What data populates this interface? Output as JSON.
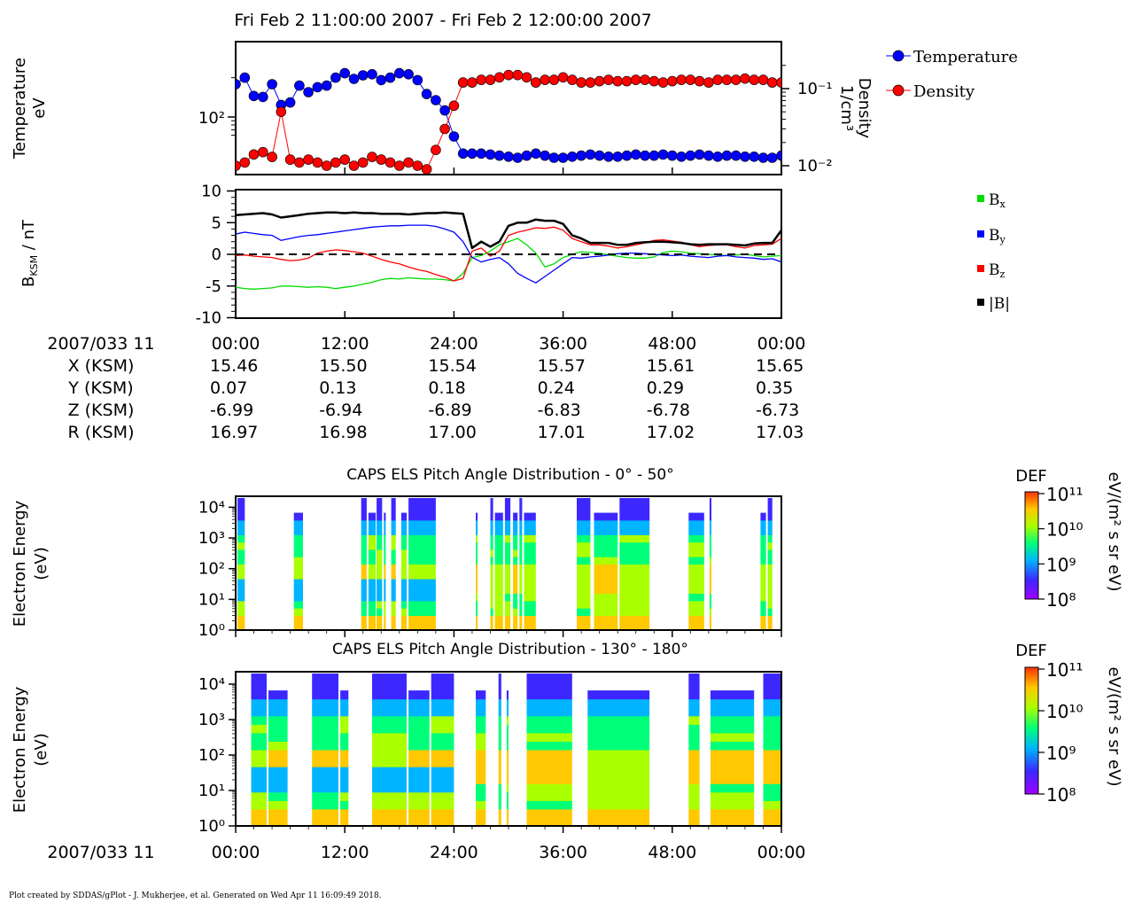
{
  "page_title": "Fri Feb 2 11:00:00 2007 - Fri Feb 2 12:00:00 2007",
  "footer": "Plot created by SDDAS/gPlot - J. Mukherjee, et al.  Generated on Wed Apr 11 16:09:49 2018.",
  "time_axis": {
    "row_label": "2007/033 11",
    "ticks": [
      "00:00",
      "12:00",
      "24:00",
      "36:00",
      "48:00",
      "00:00"
    ],
    "tick_minutes": [
      0,
      12,
      24,
      36,
      48,
      60
    ]
  },
  "ephemeris": [
    {
      "label": "X (KSM)",
      "values": [
        "15.46",
        "15.50",
        "15.54",
        "15.57",
        "15.61",
        "15.65"
      ]
    },
    {
      "label": "Y (KSM)",
      "values": [
        "0.07",
        "0.13",
        "0.18",
        "0.24",
        "0.29",
        "0.35"
      ]
    },
    {
      "label": "Z (KSM)",
      "values": [
        "-6.99",
        "-6.94",
        "-6.89",
        "-6.83",
        "-6.78",
        "-6.73"
      ]
    },
    {
      "label": "R (KSM)",
      "values": [
        "16.97",
        "16.98",
        "17.00",
        "17.01",
        "17.02",
        "17.03"
      ]
    }
  ],
  "colors": {
    "temperature": "#0000ff",
    "density": "#ff0000",
    "bx": "#00dd00",
    "by": "#0000ff",
    "bz": "#ff0000",
    "btot": "#000000"
  },
  "colorbar": {
    "label": "DEF",
    "units": "eV/(m² s sr eV)",
    "tick_labels": [
      "10¹¹",
      "10¹⁰",
      "10⁹",
      "10⁸"
    ],
    "range_log10": [
      8,
      11
    ],
    "colors": [
      "#a000ff",
      "#3c28ff",
      "#00b4ff",
      "#00ff78",
      "#aaff00",
      "#ffc800",
      "#ff3200"
    ]
  },
  "chart_data": [
    {
      "type": "line",
      "title": "",
      "ylabel": "Temperature eV",
      "y2label": "Density 1/cm³",
      "y_scale": "log",
      "y_ticks": [
        "10²"
      ],
      "y2_scale": "log",
      "y2_ticks": [
        "10⁻¹",
        "10⁻²"
      ],
      "xlim_minutes": [
        0,
        60
      ],
      "legend_placement": "right",
      "series": [
        {
          "name": "Temperature",
          "axis": "left",
          "x": [
            0,
            1,
            2,
            3,
            4,
            5,
            6,
            7,
            8,
            9,
            10,
            11,
            12,
            13,
            14,
            15,
            16,
            17,
            18,
            19,
            20,
            21,
            22,
            23,
            24,
            25,
            26,
            27,
            28,
            29,
            30,
            31,
            32,
            33,
            34,
            35,
            36,
            37,
            38,
            39,
            40,
            41,
            42,
            43,
            44,
            45,
            46,
            47,
            48,
            49,
            50,
            51,
            52,
            53,
            54,
            55,
            56,
            57,
            58,
            59,
            60
          ],
          "y": [
            250,
            300,
            180,
            175,
            250,
            140,
            150,
            240,
            200,
            230,
            240,
            300,
            340,
            290,
            320,
            330,
            280,
            300,
            340,
            330,
            280,
            190,
            160,
            120,
            58,
            36,
            36,
            36,
            35,
            34,
            33,
            32,
            34,
            36,
            34,
            32,
            32,
            33,
            34,
            35,
            34,
            33,
            33,
            34,
            35,
            34,
            34,
            35,
            34,
            33,
            34,
            35,
            34,
            33,
            34,
            34,
            33,
            33,
            32,
            32,
            34
          ]
        },
        {
          "name": "Density",
          "axis": "right",
          "x": [
            0,
            1,
            2,
            3,
            4,
            5,
            6,
            7,
            8,
            9,
            10,
            11,
            12,
            13,
            14,
            15,
            16,
            17,
            18,
            19,
            20,
            21,
            22,
            23,
            24,
            25,
            26,
            27,
            28,
            29,
            30,
            31,
            32,
            33,
            34,
            35,
            36,
            37,
            38,
            39,
            40,
            41,
            42,
            43,
            44,
            45,
            46,
            47,
            48,
            49,
            50,
            51,
            52,
            53,
            54,
            55,
            56,
            57,
            58,
            59,
            60
          ],
          "y": [
            0.01,
            0.011,
            0.014,
            0.015,
            0.013,
            0.05,
            0.012,
            0.011,
            0.012,
            0.011,
            0.01,
            0.011,
            0.012,
            0.01,
            0.011,
            0.013,
            0.012,
            0.011,
            0.01,
            0.011,
            0.01,
            0.009,
            0.016,
            0.03,
            0.06,
            0.12,
            0.12,
            0.13,
            0.13,
            0.14,
            0.15,
            0.15,
            0.14,
            0.12,
            0.13,
            0.13,
            0.14,
            0.13,
            0.12,
            0.12,
            0.125,
            0.13,
            0.125,
            0.125,
            0.13,
            0.13,
            0.125,
            0.12,
            0.125,
            0.13,
            0.13,
            0.125,
            0.12,
            0.13,
            0.13,
            0.13,
            0.135,
            0.13,
            0.13,
            0.12,
            0.12
          ]
        }
      ]
    },
    {
      "type": "line",
      "title": "",
      "ylabel": "B_KSM / nT",
      "ylim": [
        -10,
        10
      ],
      "y_ticks": [
        "10",
        "5",
        "0",
        "-5",
        "-10"
      ],
      "xlim_minutes": [
        0,
        60
      ],
      "legend_placement": "right",
      "series": [
        {
          "name": "Bx",
          "label_base": "B",
          "label_sub": "x",
          "x": [
            0,
            1,
            2,
            3,
            4,
            5,
            6,
            7,
            8,
            9,
            10,
            11,
            12,
            13,
            14,
            15,
            16,
            17,
            18,
            19,
            20,
            21,
            22,
            23,
            24,
            25,
            26,
            27,
            28,
            29,
            30,
            31,
            32,
            33,
            34,
            35,
            36,
            37,
            38,
            39,
            40,
            41,
            42,
            43,
            44,
            45,
            46,
            47,
            48,
            49,
            50,
            51,
            52,
            53,
            54,
            55,
            56,
            57,
            58,
            59,
            60
          ],
          "y": [
            -5.2,
            -5.4,
            -5.5,
            -5.4,
            -5.3,
            -5.0,
            -5.0,
            -5.1,
            -5.2,
            -5.1,
            -5.2,
            -5.4,
            -5.2,
            -5.0,
            -4.7,
            -4.4,
            -4.0,
            -3.8,
            -3.9,
            -3.7,
            -3.8,
            -3.9,
            -3.9,
            -4.0,
            -4.2,
            -3.0,
            -0.5,
            -0.2,
            0.5,
            1.5,
            2.0,
            2.5,
            1.5,
            0.2,
            -2.0,
            -1.5,
            -0.5,
            0.0,
            0.4,
            0.3,
            0.2,
            -0.1,
            -0.3,
            -0.5,
            -0.6,
            -0.6,
            -0.4,
            0.3,
            0.5,
            0.4,
            0.2,
            0.1,
            0.0,
            -0.1,
            -0.2,
            -0.1,
            0.0,
            -0.2,
            -0.4,
            -0.3,
            -0.2
          ]
        },
        {
          "name": "By",
          "label_base": "B",
          "label_sub": "y",
          "x": [
            0,
            1,
            2,
            3,
            4,
            5,
            6,
            7,
            8,
            9,
            10,
            11,
            12,
            13,
            14,
            15,
            16,
            17,
            18,
            19,
            20,
            21,
            22,
            23,
            24,
            25,
            26,
            27,
            28,
            29,
            30,
            31,
            32,
            33,
            34,
            35,
            36,
            37,
            38,
            39,
            40,
            41,
            42,
            43,
            44,
            45,
            46,
            47,
            48,
            49,
            50,
            51,
            52,
            53,
            54,
            55,
            56,
            57,
            58,
            59,
            60
          ],
          "y": [
            3.2,
            3.5,
            3.3,
            3.1,
            3.0,
            2.2,
            2.5,
            2.8,
            3.0,
            3.1,
            3.3,
            3.5,
            3.7,
            3.9,
            4.1,
            4.3,
            4.4,
            4.5,
            4.5,
            4.6,
            4.6,
            4.6,
            4.4,
            4.0,
            3.5,
            2.0,
            -0.5,
            -1.2,
            -0.8,
            -0.5,
            -1.5,
            -3.0,
            -3.8,
            -4.5,
            -3.5,
            -2.5,
            -1.5,
            -0.5,
            -0.6,
            -0.4,
            -0.3,
            -0.1,
            0.1,
            0.2,
            0.2,
            0.1,
            0.0,
            -0.1,
            -0.2,
            -0.1,
            -0.3,
            -0.4,
            -0.5,
            -0.3,
            -0.2,
            -0.4,
            -0.5,
            -0.6,
            -0.8,
            -0.7,
            -1.2
          ]
        },
        {
          "name": "Bz",
          "label_base": "B",
          "label_sub": "z",
          "x": [
            0,
            1,
            2,
            3,
            4,
            5,
            6,
            7,
            8,
            9,
            10,
            11,
            12,
            13,
            14,
            15,
            16,
            17,
            18,
            19,
            20,
            21,
            22,
            23,
            24,
            25,
            26,
            27,
            28,
            29,
            30,
            31,
            32,
            33,
            34,
            35,
            36,
            37,
            38,
            39,
            40,
            41,
            42,
            43,
            44,
            45,
            46,
            47,
            48,
            49,
            50,
            51,
            52,
            53,
            54,
            55,
            56,
            57,
            58,
            59,
            60
          ],
          "y": [
            -0.2,
            -0.1,
            -0.3,
            -0.4,
            -0.5,
            -0.8,
            -1.0,
            -0.9,
            -0.6,
            0.2,
            0.5,
            0.7,
            0.6,
            0.4,
            0.2,
            -0.3,
            -0.8,
            -1.2,
            -1.5,
            -2.0,
            -2.4,
            -2.7,
            -3.2,
            -3.6,
            -4.2,
            -3.8,
            0.5,
            1.0,
            -0.3,
            0.5,
            3.0,
            3.5,
            3.8,
            4.2,
            4.1,
            4.3,
            3.8,
            2.5,
            2.0,
            1.5,
            1.5,
            1.3,
            1.0,
            1.2,
            1.5,
            1.8,
            2.2,
            2.3,
            2.1,
            1.9,
            1.5,
            1.2,
            1.4,
            1.5,
            1.5,
            1.2,
            1.0,
            1.4,
            1.5,
            1.6,
            2.5
          ]
        },
        {
          "name": "|B|",
          "label_base": "|B|",
          "label_sub": "",
          "x": [
            0,
            1,
            2,
            3,
            4,
            5,
            6,
            7,
            8,
            9,
            10,
            11,
            12,
            13,
            14,
            15,
            16,
            17,
            18,
            19,
            20,
            21,
            22,
            23,
            24,
            25,
            26,
            27,
            28,
            29,
            30,
            31,
            32,
            33,
            34,
            35,
            36,
            37,
            38,
            39,
            40,
            41,
            42,
            43,
            44,
            45,
            46,
            47,
            48,
            49,
            50,
            51,
            52,
            53,
            54,
            55,
            56,
            57,
            58,
            59,
            60
          ],
          "y": [
            6.2,
            6.3,
            6.4,
            6.5,
            6.3,
            5.8,
            6.0,
            6.2,
            6.4,
            6.5,
            6.6,
            6.6,
            6.5,
            6.6,
            6.5,
            6.5,
            6.4,
            6.4,
            6.4,
            6.3,
            6.4,
            6.5,
            6.5,
            6.6,
            6.5,
            6.4,
            1.0,
            2.0,
            1.2,
            2.0,
            4.5,
            5.0,
            5.0,
            5.5,
            5.3,
            5.3,
            4.8,
            3.0,
            2.5,
            1.8,
            1.8,
            1.8,
            1.5,
            1.5,
            1.8,
            1.9,
            2.0,
            2.0,
            1.9,
            1.8,
            1.6,
            1.5,
            1.6,
            1.6,
            1.6,
            1.5,
            1.4,
            1.7,
            1.8,
            1.8,
            3.8
          ]
        }
      ]
    },
    {
      "type": "heatmap",
      "title": "CAPS ELS Pitch Angle Distribution - 0° - 50°",
      "ylabel": "Electron Energy (eV)",
      "y_ticks": [
        "10⁴",
        "10³",
        "10²",
        "10¹",
        "10⁰"
      ],
      "y_log10_range": [
        0,
        4.3
      ],
      "z_label": "DEF",
      "z_log10_range": [
        8,
        11
      ],
      "data_intervals_minutes": [
        [
          0.2,
          1.0
        ],
        [
          6.4,
          7.4
        ],
        [
          13.8,
          14.4
        ],
        [
          14.6,
          15.4
        ],
        [
          15.5,
          16.1
        ],
        [
          16.3,
          16.5
        ],
        [
          17.1,
          17.6
        ],
        [
          18.2,
          18.8
        ],
        [
          19.0,
          22.0
        ],
        [
          26.4,
          26.6
        ],
        [
          28.0,
          28.3
        ],
        [
          28.5,
          29.4
        ],
        [
          29.6,
          30.2
        ],
        [
          30.5,
          31.0
        ],
        [
          31.2,
          31.5
        ],
        [
          31.7,
          33.0
        ],
        [
          37.5,
          39.0
        ],
        [
          39.4,
          42.0
        ],
        [
          42.2,
          45.5
        ],
        [
          49.8,
          51.5
        ],
        [
          52.1,
          52.3
        ],
        [
          57.7,
          58.3
        ],
        [
          58.5,
          59.0
        ]
      ]
    },
    {
      "type": "heatmap",
      "title": "CAPS ELS Pitch Angle Distribution - 130° - 180°",
      "ylabel": "Electron Energy (eV)",
      "y_ticks": [
        "10⁴",
        "10³",
        "10²",
        "10¹",
        "10⁰"
      ],
      "y_log10_range": [
        0,
        4.3
      ],
      "z_label": "DEF",
      "z_log10_range": [
        8,
        11
      ],
      "data_intervals_minutes": [
        [
          1.7,
          3.4
        ],
        [
          3.6,
          5.7
        ],
        [
          8.4,
          11.3
        ],
        [
          11.5,
          12.4
        ],
        [
          15.0,
          18.8
        ],
        [
          19.0,
          21.3
        ],
        [
          21.5,
          24.0
        ],
        [
          26.4,
          27.5
        ],
        [
          28.9,
          29.2
        ],
        [
          29.8,
          30.0
        ],
        [
          32.0,
          37.0
        ],
        [
          38.7,
          45.5
        ],
        [
          49.8,
          51.0
        ],
        [
          52.2,
          57.0
        ],
        [
          58.0,
          60.0
        ]
      ]
    }
  ]
}
